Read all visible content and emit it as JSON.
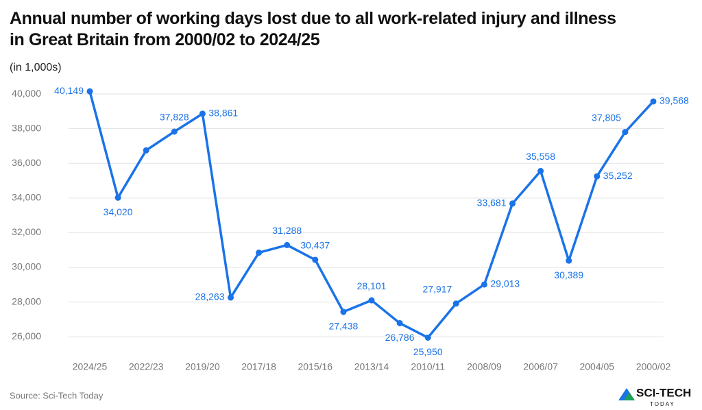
{
  "chart_data": {
    "type": "line",
    "title": [
      "Annual number of working days lost due to all work-related injury and illness",
      "in Great Britain from 2000/02 to 2024/25"
    ],
    "subtitle": "(in 1,000s)",
    "source": "Source: Sci-Tech Today",
    "logo": {
      "name": "SCI-TECH",
      "tagline": "TODAY"
    },
    "categories": [
      "2024/25",
      null,
      "2022/23",
      null,
      "2019/20",
      null,
      "2017/18",
      null,
      "2015/16",
      null,
      "2013/14",
      null,
      "2010/11",
      null,
      "2008/09",
      null,
      "2006/07",
      null,
      "2004/05",
      null,
      "2000/02"
    ],
    "series": [
      {
        "color": "#1a73e8",
        "values": [
          40149,
          34020,
          36750,
          37828,
          38861,
          28263,
          30850,
          31288,
          30437,
          27438,
          28101,
          26786,
          25950,
          27917,
          29013,
          33681,
          35558,
          30389,
          35252,
          37805,
          39568
        ],
        "value_labels": [
          "40,149",
          "34,020",
          null,
          "37,828",
          "38,861",
          "28,263",
          null,
          "31,288",
          "30,437",
          "27,438",
          "28,101",
          "26,786",
          "25,950",
          "27,917",
          "29,013",
          "33,681",
          "35,558",
          "30,389",
          "35,252",
          "37,805",
          "39,568"
        ]
      }
    ],
    "ylim": [
      25000,
      40500
    ],
    "yticks": [
      {
        "value": 26000,
        "label": "26,000"
      },
      {
        "value": 28000,
        "label": "28,000"
      },
      {
        "value": 30000,
        "label": "30,000"
      },
      {
        "value": 32000,
        "label": "32,000"
      },
      {
        "value": 34000,
        "label": "34,000"
      },
      {
        "value": 36000,
        "label": "36,000"
      },
      {
        "value": 38000,
        "label": "38,000"
      },
      {
        "value": 40000,
        "label": "40,000"
      }
    ],
    "grid": true
  }
}
